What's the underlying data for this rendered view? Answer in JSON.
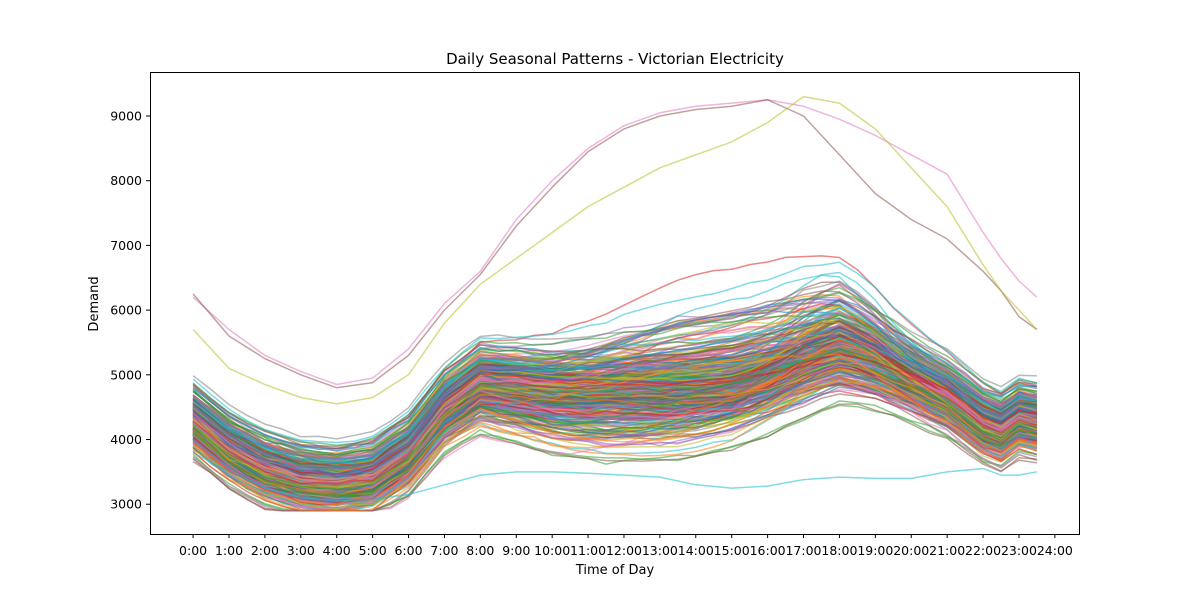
{
  "chart_data": {
    "type": "line",
    "title": "Daily Seasonal Patterns - Victorian Electricity",
    "xlabel": "Time of Day",
    "ylabel": "Demand",
    "x_ticks": [
      "0:00",
      "1:00",
      "2:00",
      "3:00",
      "4:00",
      "5:00",
      "6:00",
      "7:00",
      "8:00",
      "9:00",
      "10:00",
      "11:00",
      "12:00",
      "13:00",
      "14:00",
      "15:00",
      "16:00",
      "17:00",
      "18:00",
      "19:00",
      "20:00",
      "21:00",
      "22:00",
      "23:00",
      "24:00"
    ],
    "x_range": [
      0,
      23.5
    ],
    "xlim": [
      -1.2,
      24.7
    ],
    "y_ticks": [
      3000,
      4000,
      5000,
      6000,
      7000,
      8000,
      9000
    ],
    "ylim": [
      2540,
      9680
    ],
    "grid": false,
    "legend": "none",
    "series_count": 365,
    "line_alpha": 0.55,
    "palette": [
      "#1f77b4",
      "#ff7f0e",
      "#2ca02c",
      "#d62728",
      "#9467bd",
      "#8c564b",
      "#e377c2",
      "#7f7f7f",
      "#bcbd22",
      "#17becf"
    ],
    "shape_anchors": {
      "hours": [
        0,
        1,
        2,
        3,
        4,
        5,
        6,
        7,
        8,
        9,
        10,
        11,
        12,
        13,
        14,
        15,
        16,
        17,
        18,
        19,
        20,
        21,
        22,
        22.5,
        23,
        23.5
      ],
      "base": [
        4300,
        3850,
        3550,
        3380,
        3330,
        3420,
        3800,
        4500,
        4900,
        4850,
        4780,
        4760,
        4760,
        4740,
        4730,
        4760,
        4860,
        5020,
        5180,
        5050,
        4850,
        4630,
        4230,
        4130,
        4330,
        4270
      ]
    },
    "extreme_days": [
      {
        "values": [
          6200,
          5700,
          5300,
          5050,
          4850,
          4950,
          5400,
          6100,
          6600,
          7400,
          8000,
          8500,
          8850,
          9050,
          9150,
          9200,
          9250,
          9150,
          8950,
          8700,
          8400,
          8100,
          7200,
          6800,
          6450,
          6200
        ],
        "color": "#e377c2"
      },
      {
        "values": [
          6250,
          5600,
          5250,
          5000,
          4800,
          4880,
          5300,
          6000,
          6550,
          7300,
          7900,
          8450,
          8800,
          9000,
          9100,
          9150,
          9250,
          9000,
          8400,
          7800,
          7400,
          7100,
          6600,
          6300,
          5900,
          5700
        ],
        "color": "#8c564b"
      },
      {
        "values": [
          5700,
          5100,
          4850,
          4650,
          4550,
          4650,
          5000,
          5800,
          6400,
          6800,
          7200,
          7600,
          7900,
          8200,
          8400,
          8600,
          8900,
          9300,
          9200,
          8800,
          8200,
          7600,
          6700,
          6300,
          6000,
          5700
        ],
        "color": "#bcbd22"
      },
      {
        "values": [
          3800,
          3500,
          3250,
          3100,
          3050,
          3080,
          3150,
          3300,
          3450,
          3500,
          3500,
          3480,
          3450,
          3420,
          3300,
          3250,
          3280,
          3380,
          3420,
          3400,
          3400,
          3500,
          3550,
          3450,
          3450,
          3500
        ],
        "color": "#17becf"
      }
    ]
  }
}
